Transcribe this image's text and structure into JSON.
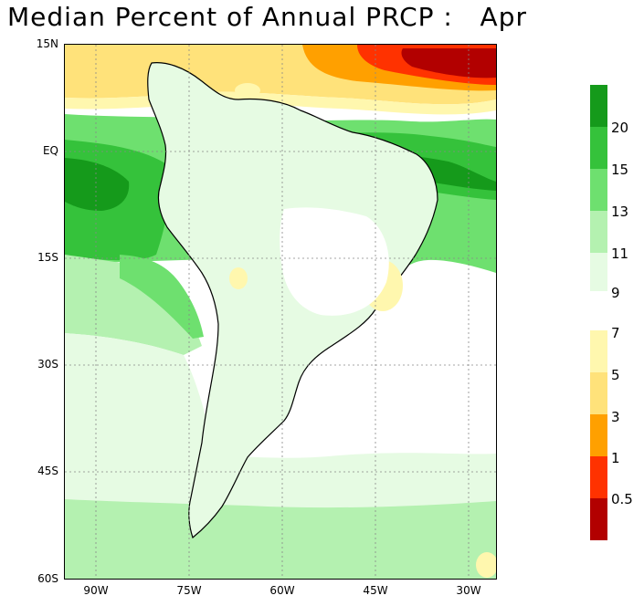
{
  "title": "Median Percent of Annual PRCP :   Apr",
  "map": {
    "lat_labels": [
      "15N",
      "EQ",
      "15S",
      "30S",
      "45S",
      "60S"
    ],
    "lon_labels": [
      "90W",
      "75W",
      "60W",
      "45W",
      "30W"
    ]
  },
  "legend": {
    "upper_labels": [
      "20",
      "15",
      "13",
      "11",
      "9"
    ],
    "lower_labels": [
      "7",
      "5",
      "3",
      "1",
      "0.5"
    ],
    "colors": {
      "gt20": "#159a1b",
      "15_20": "#35c23b",
      "13_15": "#6ee06f",
      "11_13": "#b4f1b0",
      "9_11": "#e6fbe3",
      "5_7": "#fff7ae",
      "3_5": "#ffe27a",
      "1_3": "#ffa000",
      "0.5_1": "#ff3200",
      "lt0.5": "#b20000"
    }
  }
}
